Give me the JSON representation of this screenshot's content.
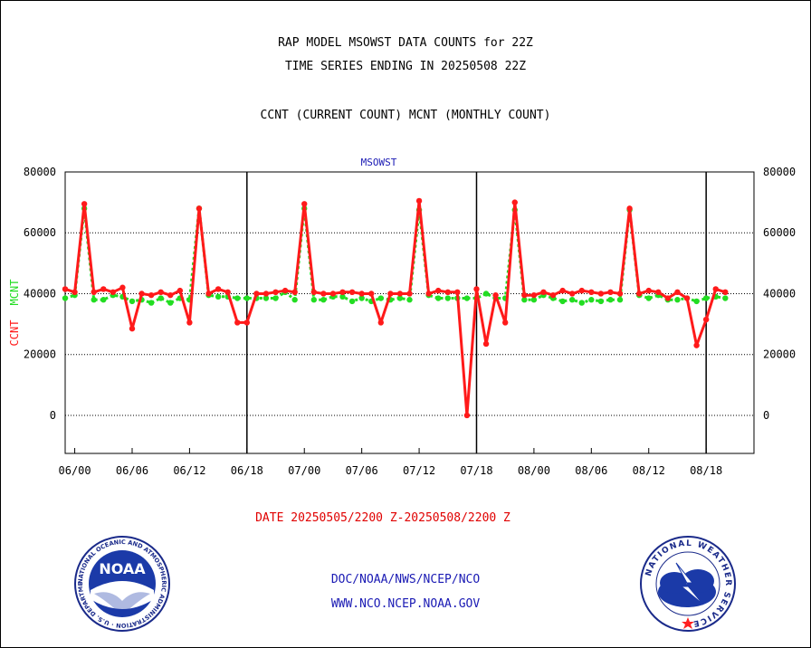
{
  "header": {
    "title1": "RAP MODEL MSOWST DATA COUNTS for 22Z",
    "title2": "TIME SERIES ENDING IN 20250508 22Z",
    "subtitle": "CCNT (CURRENT COUNT) MCNT (MONTHLY COUNT)"
  },
  "footer": {
    "daterange": "DATE 20250505/2200 Z-20250508/2200 Z",
    "org": "DOC/NOAA/NWS/NCEP/NCO",
    "url": "WWW.NCO.NCEP.NOAA.GOV"
  },
  "logos": {
    "noaa_text": "NOAA",
    "noaa_ring": "NATIONAL OCEANIC AND ATMOSPHERIC ADMINISTRATION · U.S. DEPARTMENT OF COMMERCE",
    "nws_ring": "NATIONAL WEATHER SERVICE"
  },
  "colors": {
    "ccnt": "#ff1a1a",
    "mcnt": "#22dd22",
    "text_blue": "#1a1ab4",
    "daterange": "#e00000"
  },
  "chart_data": {
    "type": "line",
    "title": "MSOWST",
    "ylabel_ccnt": "CCNT",
    "ylabel_mcnt": "MCNT",
    "ylim": [
      -12500,
      80000
    ],
    "yticks": [
      0,
      20000,
      40000,
      60000,
      80000
    ],
    "xticks": [
      "06/00",
      "06/06",
      "06/12",
      "06/18",
      "07/00",
      "07/06",
      "07/12",
      "07/18",
      "08/00",
      "08/06",
      "08/12",
      "08/18"
    ],
    "xtick_hours": [
      0,
      6,
      12,
      18,
      24,
      30,
      36,
      42,
      48,
      54,
      60,
      66
    ],
    "day_boundaries_hours": [
      18,
      42,
      66
    ],
    "x_hours_start": -1,
    "x_hours_end": 71,
    "grid": true,
    "series": [
      {
        "name": "CCNT",
        "values": [
          41500,
          40500,
          69500,
          40500,
          41500,
          40500,
          42000,
          28500,
          40000,
          39500,
          40500,
          39500,
          41000,
          30500,
          68000,
          40000,
          41500,
          40500,
          30500,
          30500,
          40000,
          40000,
          40500,
          41000,
          40500,
          69500,
          40500,
          40000,
          40000,
          40500,
          40500,
          40000,
          40000,
          30500,
          40000,
          40000,
          40000,
          70500,
          40000,
          41000,
          40500,
          40500,
          0,
          41500,
          23500,
          39500,
          30500,
          70000,
          39500,
          39500,
          40500,
          39500,
          41000,
          40000,
          41000,
          40500,
          40000,
          40500,
          40000,
          68000,
          40000,
          41000,
          40500,
          38500,
          40500,
          38500,
          23000,
          31500,
          41500,
          40500
        ]
      },
      {
        "name": "MCNT",
        "values": [
          38500,
          39500,
          68000,
          38000,
          38000,
          39500,
          39000,
          37500,
          38000,
          37000,
          38500,
          37000,
          38500,
          38000,
          68000,
          39500,
          39000,
          39000,
          38500,
          38500,
          38500,
          38500,
          38500,
          40500,
          38000,
          68000,
          38000,
          38000,
          39000,
          39000,
          37500,
          38500,
          37500,
          38500,
          38000,
          38500,
          38000,
          67500,
          39500,
          38500,
          38500,
          38500,
          38500,
          38500,
          40000,
          38500,
          38500,
          67500,
          38000,
          38000,
          39500,
          38500,
          37500,
          38000,
          37000,
          38000,
          37500,
          38000,
          38000,
          67500,
          39500,
          38500,
          39500,
          38000,
          38000,
          38500,
          37500,
          38500,
          39000,
          38500
        ]
      }
    ]
  }
}
